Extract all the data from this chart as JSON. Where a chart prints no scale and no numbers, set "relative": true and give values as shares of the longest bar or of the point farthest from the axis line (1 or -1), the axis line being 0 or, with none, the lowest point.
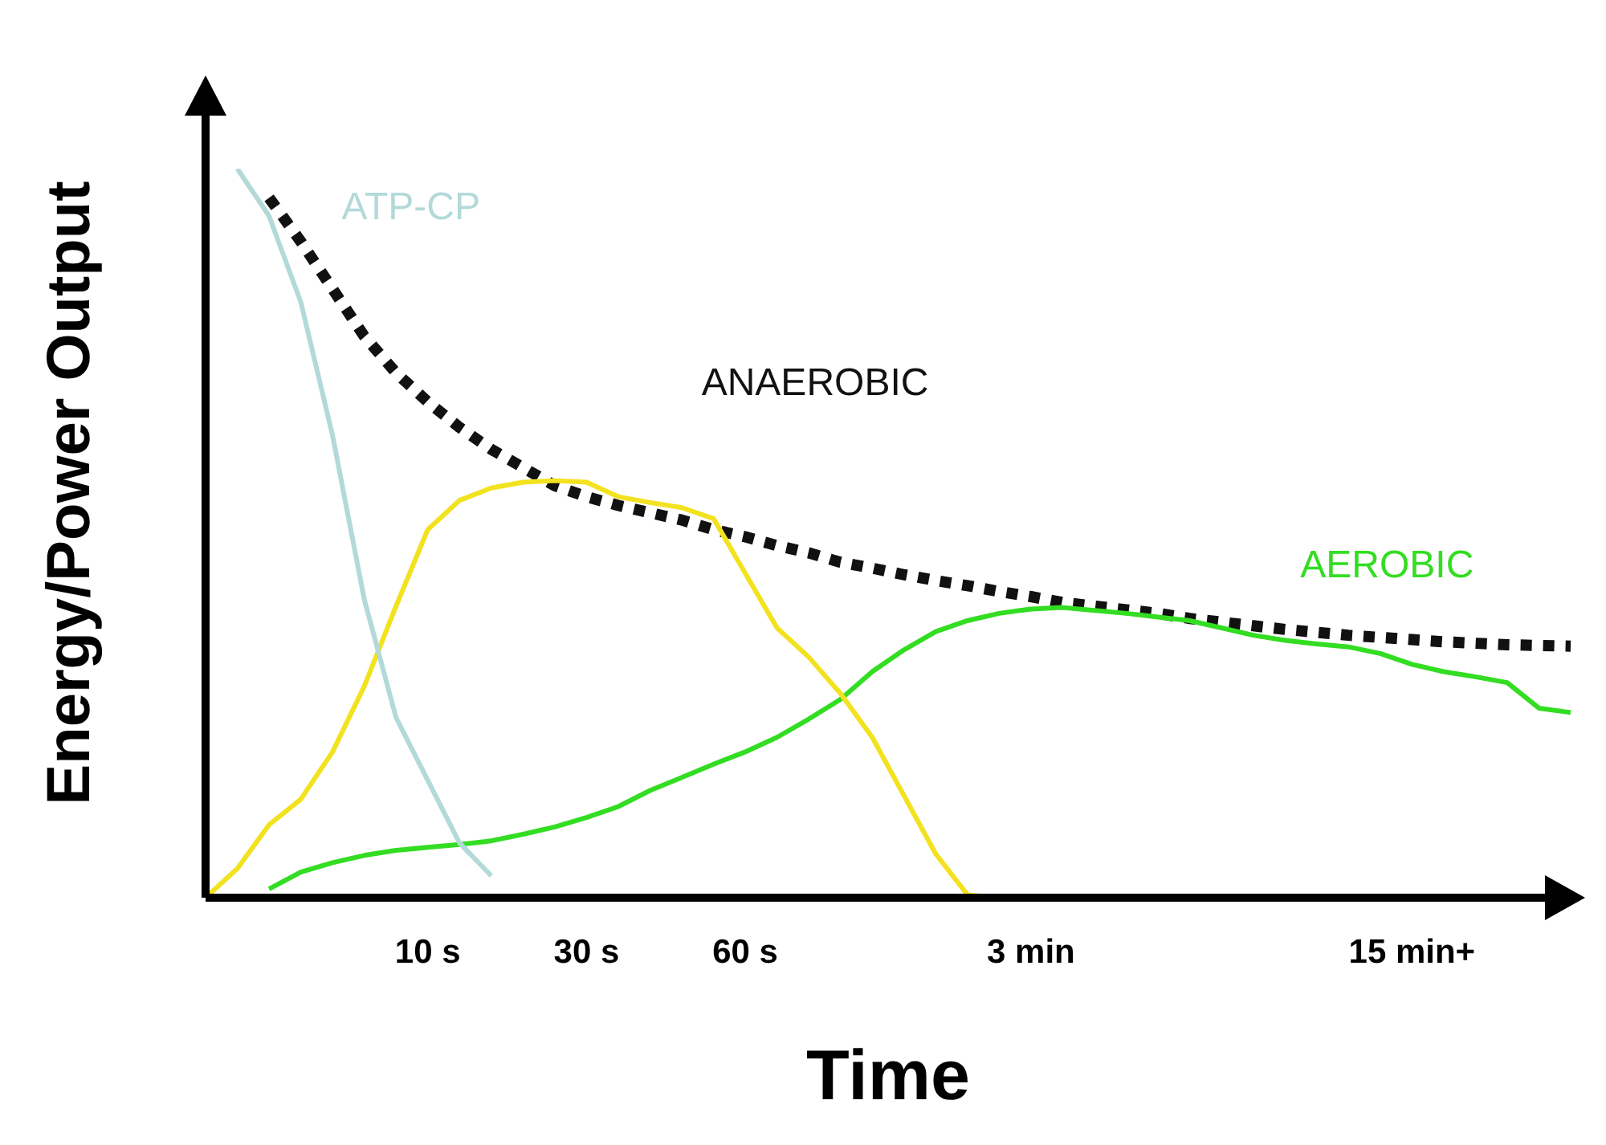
{
  "chart_data": {
    "type": "line",
    "relative": true,
    "xlabel": "Time",
    "ylabel": "Energy/Power Output",
    "categories": [
      null,
      null,
      null,
      null,
      null,
      null,
      null,
      "10 s",
      null,
      null,
      null,
      null,
      "30 s",
      null,
      null,
      null,
      null,
      "60 s",
      null,
      null,
      null,
      null,
      null,
      null,
      null,
      null,
      "3 min",
      null,
      null,
      null,
      null,
      null,
      null,
      null,
      null,
      null,
      null,
      null,
      "15 min+",
      null,
      null,
      null,
      null,
      null
    ],
    "grid": false,
    "legend": false,
    "marker": "none",
    "series": [
      {
        "name": "ATP-CP",
        "color": "#b3d9d9",
        "line_style": "solid",
        "values": [
          null,
          1.0,
          0.935,
          0.817,
          0.634,
          0.409,
          0.247,
          0.161,
          0.075,
          0.03,
          null,
          null,
          null,
          null,
          null,
          null,
          null,
          null,
          null,
          null,
          null,
          null,
          null,
          null,
          null,
          null,
          null,
          null,
          null,
          null,
          null,
          null,
          null,
          null,
          null,
          null,
          null,
          null,
          null,
          null,
          null,
          null,
          null,
          null
        ]
      },
      {
        "color": "#f2e21f",
        "line_style": "solid",
        "values": [
          0,
          0.04,
          0.1,
          0.135,
          0.2,
          0.29,
          0.4,
          0.505,
          0.545,
          0.562,
          0.57,
          0.572,
          0.57,
          0.55,
          0.542,
          0.535,
          0.52,
          0.445,
          0.37,
          0.33,
          0.28,
          0.22,
          0.14,
          0.06,
          0.004,
          0,
          null,
          null,
          null,
          null,
          null,
          null,
          null,
          null,
          null,
          null,
          null,
          null,
          null,
          null,
          null,
          null,
          null,
          null
        ]
      },
      {
        "name": "AEROBIC",
        "color": "#33dd22",
        "line_style": "solid",
        "values": [
          null,
          null,
          0.012,
          0.035,
          0.048,
          0.058,
          0.065,
          0.069,
          0.073,
          0.078,
          0.087,
          0.097,
          0.11,
          0.125,
          0.147,
          0.165,
          0.183,
          0.2,
          0.22,
          0.245,
          0.272,
          0.31,
          0.34,
          0.365,
          0.38,
          0.39,
          0.396,
          0.398,
          0.394,
          0.39,
          0.385,
          0.38,
          0.37,
          0.36,
          0.353,
          0.348,
          0.344,
          0.335,
          0.32,
          0.31,
          0.303,
          0.295,
          0.26,
          0.254
        ]
      },
      {
        "name": "ANAEROBIC",
        "color": "#111111",
        "line_style": "dotted",
        "values": [
          null,
          null,
          0.96,
          0.9,
          0.835,
          0.77,
          0.72,
          0.68,
          0.645,
          0.615,
          0.59,
          0.565,
          0.55,
          0.538,
          0.528,
          0.518,
          0.505,
          0.495,
          0.483,
          0.473,
          0.46,
          0.452,
          0.443,
          0.435,
          0.428,
          0.42,
          0.413,
          0.405,
          0.4,
          0.395,
          0.39,
          0.383,
          0.378,
          0.373,
          0.368,
          0.364,
          0.36,
          0.357,
          0.354,
          0.351,
          0.349,
          0.347,
          0.346,
          0.345
        ]
      }
    ]
  }
}
